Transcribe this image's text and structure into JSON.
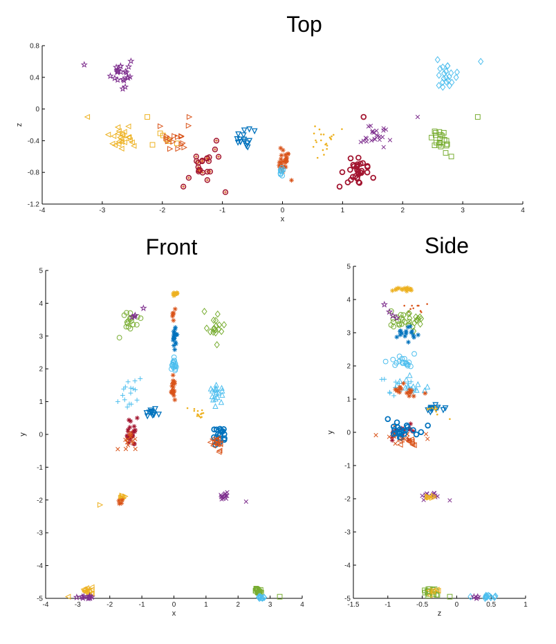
{
  "chart_data": [
    {
      "type": "scatter",
      "title": "Top",
      "xlabel": "x",
      "ylabel": "z",
      "xlim": [
        -4,
        4
      ],
      "ylim": [
        -1.2,
        0.8
      ],
      "xticks": [
        "-4",
        "-3",
        "-2",
        "-1",
        "0",
        "1",
        "2",
        "3",
        "4"
      ],
      "yticks": [
        "-1.2",
        "-0.8",
        "-0.4",
        "0",
        "0.4",
        "0.8"
      ],
      "grid": false,
      "series": [
        {
          "marker": "pentagram",
          "color": "#7E2F8E",
          "cx": -2.7,
          "cy": 0.44,
          "sx": 0.1,
          "sy": 0.08,
          "n": 22,
          "outliers": [
            [
              -3.3,
              0.56
            ]
          ]
        },
        {
          "marker": "diamond",
          "color": "#4DBEEE",
          "cx": 2.7,
          "cy": 0.42,
          "sx": 0.1,
          "sy": 0.09,
          "n": 22,
          "outliers": [
            [
              3.3,
              0.6
            ]
          ]
        },
        {
          "marker": "triangle-left",
          "color": "#EDB120",
          "cx": -2.65,
          "cy": -0.38,
          "sx": 0.1,
          "sy": 0.07,
          "n": 24,
          "outliers": [
            [
              -3.25,
              -0.1
            ]
          ]
        },
        {
          "marker": "square",
          "color": "#EDB120",
          "cx": -1.9,
          "cy": -0.35,
          "sx": 0.12,
          "sy": 0.06,
          "n": 6,
          "outliers": [
            [
              -2.25,
              -0.1
            ]
          ]
        },
        {
          "marker": "triangle-right",
          "color": "#D95319",
          "cx": -1.75,
          "cy": -0.38,
          "sx": 0.15,
          "sy": 0.07,
          "n": 16,
          "outliers": [
            [
              -1.55,
              -0.1
            ]
          ]
        },
        {
          "marker": "star-ring",
          "color": "#A2142F",
          "cx": -1.3,
          "cy": -0.75,
          "sx": 0.12,
          "sy": 0.1,
          "n": 20,
          "outliers": [
            [
              -1.65,
              -0.98
            ],
            [
              -0.95,
              -1.05
            ],
            [
              -1.1,
              -0.4
            ]
          ]
        },
        {
          "marker": "triangle-down",
          "color": "#0072BD",
          "cx": -0.65,
          "cy": -0.38,
          "sx": 0.08,
          "sy": 0.05,
          "n": 16,
          "outliers": []
        },
        {
          "marker": "asterisk",
          "color": "#D95319",
          "cx": 0.02,
          "cy": -0.65,
          "sx": 0.04,
          "sy": 0.07,
          "n": 26,
          "outliers": [
            [
              0.15,
              -0.9
            ]
          ]
        },
        {
          "marker": "circle",
          "color": "#4DBEEE",
          "cx": -0.02,
          "cy": -0.8,
          "sx": 0.03,
          "sy": 0.05,
          "n": 10,
          "outliers": []
        },
        {
          "marker": "dot",
          "color": "#EDB120",
          "cx": 0.65,
          "cy": -0.38,
          "sx": 0.12,
          "sy": 0.1,
          "n": 22,
          "outliers": []
        },
        {
          "marker": "x",
          "color": "#7E2F8E",
          "cx": 1.55,
          "cy": -0.35,
          "sx": 0.12,
          "sy": 0.07,
          "n": 24,
          "outliers": [
            [
              2.25,
              -0.1
            ]
          ]
        },
        {
          "marker": "ring",
          "color": "#A2142F",
          "cx": 1.25,
          "cy": -0.78,
          "sx": 0.12,
          "sy": 0.1,
          "n": 30,
          "outliers": [
            [
              0.95,
              -0.98
            ],
            [
              1.35,
              -0.1
            ]
          ]
        },
        {
          "marker": "square",
          "color": "#77AC30",
          "cx": 2.65,
          "cy": -0.38,
          "sx": 0.07,
          "sy": 0.08,
          "n": 20,
          "outliers": [
            [
              3.25,
              -0.1
            ],
            [
              2.55,
              -0.3
            ]
          ]
        }
      ]
    },
    {
      "type": "scatter",
      "title": "Front",
      "xlabel": "x",
      "ylabel": "y",
      "xlim": [
        -4,
        4
      ],
      "ylim": [
        -5,
        5
      ],
      "xticks": [
        "-4",
        "-3",
        "-2",
        "-1",
        "0",
        "1",
        "2",
        "3",
        "4"
      ],
      "yticks": [
        "-5",
        "-4",
        "-3",
        "-2",
        "-1",
        "0",
        "1",
        "2",
        "3",
        "4",
        "5"
      ],
      "grid": false,
      "series": [
        {
          "marker": "circle",
          "color": "#77AC30",
          "cx": -1.35,
          "cy": 3.4,
          "sx": 0.12,
          "sy": 0.15,
          "n": 16,
          "outliers": [
            [
              -1.7,
              2.95
            ]
          ]
        },
        {
          "marker": "pentagram",
          "color": "#7E2F8E",
          "cx": -1.2,
          "cy": 3.6,
          "sx": 0.05,
          "sy": 0.05,
          "n": 3,
          "outliers": [
            [
              -0.95,
              3.85
            ]
          ]
        },
        {
          "marker": "diamond",
          "color": "#77AC30",
          "cx": 1.3,
          "cy": 3.35,
          "sx": 0.12,
          "sy": 0.2,
          "n": 16,
          "outliers": [
            [
              0.95,
              3.75
            ]
          ]
        },
        {
          "marker": "asterisk",
          "color": "#EDB120",
          "cx": 0.0,
          "cy": 4.3,
          "sx": 0.05,
          "sy": 0.04,
          "n": 12,
          "outliers": []
        },
        {
          "marker": "asterisk",
          "color": "#D95319",
          "cx": 0.0,
          "cy": 3.65,
          "sx": 0.02,
          "sy": 0.1,
          "n": 6,
          "outliers": []
        },
        {
          "marker": "asterisk",
          "color": "#0072BD",
          "cx": 0.0,
          "cy": 2.95,
          "sx": 0.04,
          "sy": 0.18,
          "n": 18,
          "outliers": []
        },
        {
          "marker": "circle",
          "color": "#4DBEEE",
          "cx": 0.0,
          "cy": 2.15,
          "sx": 0.05,
          "sy": 0.15,
          "n": 18,
          "outliers": []
        },
        {
          "marker": "asterisk",
          "color": "#D95319",
          "cx": 0.0,
          "cy": 1.35,
          "sx": 0.04,
          "sy": 0.2,
          "n": 18,
          "outliers": []
        },
        {
          "marker": "plus",
          "color": "#4DBEEE",
          "cx": -1.4,
          "cy": 1.3,
          "sx": 0.12,
          "sy": 0.2,
          "n": 14,
          "outliers": [
            [
              -1.75,
              1.0
            ],
            [
              -1.05,
              1.7
            ]
          ]
        },
        {
          "marker": "triangle-up",
          "color": "#4DBEEE",
          "cx": 1.35,
          "cy": 1.3,
          "sx": 0.12,
          "sy": 0.2,
          "n": 18,
          "outliers": []
        },
        {
          "marker": "triangle-down",
          "color": "#0072BD",
          "cx": -0.7,
          "cy": 0.65,
          "sx": 0.1,
          "sy": 0.08,
          "n": 12,
          "outliers": []
        },
        {
          "marker": "dot",
          "color": "#EDB120",
          "cx": 0.7,
          "cy": 0.65,
          "sx": 0.1,
          "sy": 0.08,
          "n": 14,
          "outliers": []
        },
        {
          "marker": "asterisk",
          "color": "#A2142F",
          "cx": -1.35,
          "cy": -0.05,
          "sx": 0.08,
          "sy": 0.2,
          "n": 22,
          "outliers": [
            [
              -1.35,
              0.4
            ]
          ]
        },
        {
          "marker": "x",
          "color": "#D95319",
          "cx": -1.35,
          "cy": -0.2,
          "sx": 0.12,
          "sy": 0.15,
          "n": 14,
          "outliers": [
            [
              -1.75,
              -0.45
            ]
          ]
        },
        {
          "marker": "ring",
          "color": "#0072BD",
          "cx": 1.4,
          "cy": 0.0,
          "sx": 0.1,
          "sy": 0.15,
          "n": 20,
          "outliers": []
        },
        {
          "marker": "triangle-left",
          "color": "#D95319",
          "cx": 1.35,
          "cy": -0.25,
          "sx": 0.1,
          "sy": 0.12,
          "n": 14,
          "outliers": []
        },
        {
          "marker": "triangle-right",
          "color": "#EDB120",
          "cx": -1.6,
          "cy": -1.95,
          "sx": 0.08,
          "sy": 0.06,
          "n": 10,
          "outliers": [
            [
              -2.3,
              -2.15
            ]
          ]
        },
        {
          "marker": "asterisk",
          "color": "#D95319",
          "cx": -1.7,
          "cy": -2.05,
          "sx": 0.05,
          "sy": 0.05,
          "n": 4,
          "outliers": []
        },
        {
          "marker": "x",
          "color": "#7E2F8E",
          "cx": 1.6,
          "cy": -1.9,
          "sx": 0.08,
          "sy": 0.06,
          "n": 14,
          "outliers": [
            [
              2.25,
              -2.05
            ]
          ]
        },
        {
          "marker": "triangle-left",
          "color": "#EDB120",
          "cx": -2.7,
          "cy": -4.8,
          "sx": 0.1,
          "sy": 0.06,
          "n": 16,
          "outliers": [
            [
              -3.3,
              -4.95
            ]
          ]
        },
        {
          "marker": "pentagram",
          "color": "#7E2F8E",
          "cx": -2.75,
          "cy": -4.97,
          "sx": 0.1,
          "sy": 0.03,
          "n": 10,
          "outliers": []
        },
        {
          "marker": "square",
          "color": "#77AC30",
          "cx": 2.65,
          "cy": -4.8,
          "sx": 0.07,
          "sy": 0.06,
          "n": 14,
          "outliers": [
            [
              3.3,
              -4.95
            ]
          ]
        },
        {
          "marker": "diamond",
          "color": "#4DBEEE",
          "cx": 2.72,
          "cy": -4.97,
          "sx": 0.08,
          "sy": 0.03,
          "n": 10,
          "outliers": []
        }
      ]
    },
    {
      "type": "scatter",
      "title": "Side",
      "xlabel": "z",
      "ylabel": "y",
      "xlim": [
        -1.5,
        1
      ],
      "ylim": [
        -5,
        5
      ],
      "xticks": [
        "-1.5",
        "-1",
        "-0.5",
        "0",
        "0.5",
        "1"
      ],
      "yticks": [
        "-5",
        "-4",
        "-3",
        "-2",
        "-1",
        "0",
        "1",
        "2",
        "3",
        "4",
        "5"
      ],
      "grid": false,
      "series": [
        {
          "marker": "asterisk",
          "color": "#EDB120",
          "cx": -0.75,
          "cy": 4.3,
          "sx": 0.08,
          "sy": 0.03,
          "n": 16,
          "outliers": []
        },
        {
          "marker": "dot",
          "color": "#D95319",
          "cx": -0.65,
          "cy": 3.75,
          "sx": 0.12,
          "sy": 0.1,
          "n": 10,
          "outliers": []
        },
        {
          "marker": "circle",
          "color": "#77AC30",
          "cx": -0.8,
          "cy": 3.4,
          "sx": 0.1,
          "sy": 0.12,
          "n": 16,
          "outliers": [
            [
              -0.95,
              3.65
            ]
          ]
        },
        {
          "marker": "diamond",
          "color": "#77AC30",
          "cx": -0.6,
          "cy": 3.35,
          "sx": 0.08,
          "sy": 0.15,
          "n": 14,
          "outliers": []
        },
        {
          "marker": "pentagram",
          "color": "#7E2F8E",
          "cx": -0.95,
          "cy": 3.6,
          "sx": 0.04,
          "sy": 0.1,
          "n": 3,
          "outliers": [
            [
              -1.05,
              3.85
            ]
          ]
        },
        {
          "marker": "asterisk",
          "color": "#0072BD",
          "cx": -0.7,
          "cy": 2.95,
          "sx": 0.08,
          "sy": 0.12,
          "n": 16,
          "outliers": []
        },
        {
          "marker": "circle",
          "color": "#4DBEEE",
          "cx": -0.78,
          "cy": 2.15,
          "sx": 0.1,
          "sy": 0.08,
          "n": 18,
          "outliers": []
        },
        {
          "marker": "plus",
          "color": "#4DBEEE",
          "cx": -0.85,
          "cy": 1.35,
          "sx": 0.12,
          "sy": 0.15,
          "n": 14,
          "outliers": [
            [
              -1.05,
              1.6
            ]
          ]
        },
        {
          "marker": "triangle-up",
          "color": "#4DBEEE",
          "cx": -0.65,
          "cy": 1.3,
          "sx": 0.1,
          "sy": 0.15,
          "n": 14,
          "outliers": []
        },
        {
          "marker": "asterisk",
          "color": "#D95319",
          "cx": -0.75,
          "cy": 1.25,
          "sx": 0.12,
          "sy": 0.12,
          "n": 16,
          "outliers": []
        },
        {
          "marker": "triangle-down",
          "color": "#0072BD",
          "cx": -0.35,
          "cy": 0.7,
          "sx": 0.08,
          "sy": 0.06,
          "n": 12,
          "outliers": []
        },
        {
          "marker": "dot",
          "color": "#EDB120",
          "cx": -0.35,
          "cy": 0.7,
          "sx": 0.07,
          "sy": 0.08,
          "n": 10,
          "outliers": [
            [
              -0.1,
              0.4
            ]
          ]
        },
        {
          "marker": "asterisk",
          "color": "#A2142F",
          "cx": -0.8,
          "cy": 0.0,
          "sx": 0.1,
          "sy": 0.15,
          "n": 18,
          "outliers": []
        },
        {
          "marker": "x",
          "color": "#D95319",
          "cx": -0.8,
          "cy": -0.15,
          "sx": 0.14,
          "sy": 0.12,
          "n": 16,
          "outliers": []
        },
        {
          "marker": "ring",
          "color": "#0072BD",
          "cx": -0.75,
          "cy": 0.05,
          "sx": 0.14,
          "sy": 0.12,
          "n": 22,
          "outliers": [
            [
              -1.0,
              0.4
            ]
          ]
        },
        {
          "marker": "triangle-left",
          "color": "#D95319",
          "cx": -0.7,
          "cy": -0.3,
          "sx": 0.1,
          "sy": 0.08,
          "n": 10,
          "outliers": []
        },
        {
          "marker": "x",
          "color": "#7E2F8E",
          "cx": -0.38,
          "cy": -1.9,
          "sx": 0.06,
          "sy": 0.06,
          "n": 16,
          "outliers": [
            [
              -0.1,
              -2.05
            ]
          ]
        },
        {
          "marker": "triangle-right",
          "color": "#EDB120",
          "cx": -0.42,
          "cy": -1.95,
          "sx": 0.05,
          "sy": 0.05,
          "n": 8,
          "outliers": []
        },
        {
          "marker": "square",
          "color": "#77AC30",
          "cx": -0.38,
          "cy": -4.8,
          "sx": 0.07,
          "sy": 0.06,
          "n": 16,
          "outliers": [
            [
              -0.1,
              -4.95
            ]
          ]
        },
        {
          "marker": "triangle-left",
          "color": "#EDB120",
          "cx": -0.3,
          "cy": -4.8,
          "sx": 0.05,
          "sy": 0.05,
          "n": 6,
          "outliers": []
        },
        {
          "marker": "diamond",
          "color": "#4DBEEE",
          "cx": 0.45,
          "cy": -4.97,
          "sx": 0.08,
          "sy": 0.03,
          "n": 14,
          "outliers": [
            [
              0.2,
              -4.95
            ]
          ]
        },
        {
          "marker": "pentagram",
          "color": "#7E2F8E",
          "cx": 0.3,
          "cy": -4.97,
          "sx": 0.04,
          "sy": 0.02,
          "n": 3,
          "outliers": []
        }
      ]
    }
  ]
}
